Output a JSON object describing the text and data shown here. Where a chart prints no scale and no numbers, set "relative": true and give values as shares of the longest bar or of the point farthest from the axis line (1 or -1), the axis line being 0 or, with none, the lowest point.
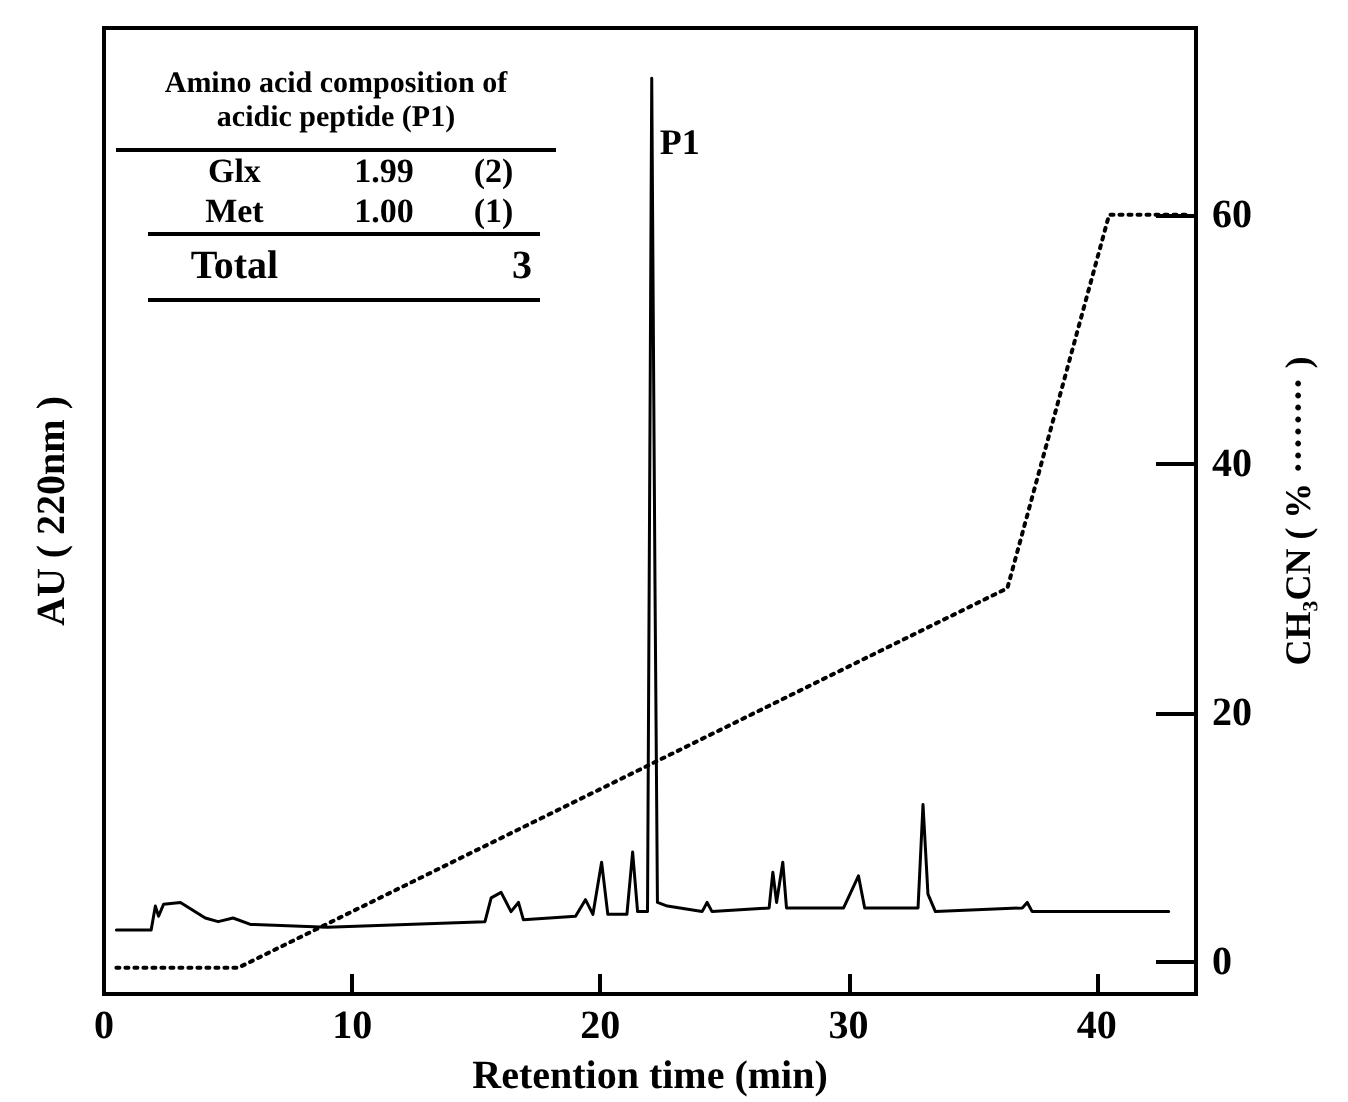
{
  "chart_data": [
    {
      "type": "line",
      "relative": true,
      "xlabel": "Retention time (min)",
      "ylabel": "AU ( 220nm )",
      "xlim": [
        0,
        44
      ],
      "xticks": [
        0,
        10,
        20,
        30,
        40
      ],
      "grid": false,
      "marker": "none",
      "series": [
        {
          "color": "#000000",
          "line_style": "solid",
          "x": [
            0.5,
            1.9,
            2.07,
            2.2,
            2.4,
            3.08,
            4.08,
            4.6,
            5.2,
            5.9,
            9.0,
            15.35,
            15.6,
            16.0,
            16.4,
            16.7,
            16.9,
            19.0,
            19.4,
            19.7,
            20.05,
            20.3,
            21.07,
            21.3,
            21.5,
            21.9,
            22.07,
            22.2,
            22.3,
            22.7,
            24.1,
            24.3,
            24.5,
            26.8,
            26.95,
            27.1,
            27.35,
            27.5,
            29.8,
            30.4,
            30.65,
            32.8,
            33.0,
            33.2,
            33.5,
            37.0,
            37.2,
            37.4,
            42.9
          ],
          "values": [
            0.07,
            0.07,
            0.096,
            0.085,
            0.098,
            0.1,
            0.083,
            0.079,
            0.083,
            0.076,
            0.073,
            0.079,
            0.105,
            0.111,
            0.09,
            0.1,
            0.081,
            0.085,
            0.103,
            0.087,
            0.144,
            0.087,
            0.087,
            0.155,
            0.09,
            0.09,
            1.0,
            0.45,
            0.1,
            0.096,
            0.09,
            0.1,
            0.09,
            0.094,
            0.133,
            0.1,
            0.144,
            0.094,
            0.094,
            0.129,
            0.094,
            0.094,
            0.207,
            0.109,
            0.09,
            0.094,
            0.1,
            0.09,
            0.09
          ]
        }
      ],
      "annotations": [
        {
          "text": "P1",
          "x": 22.07,
          "y": 0.93
        },
        "Amino acid composition of acidic peptide (P1)",
        "Glx 1.99 (2)",
        "Met 1.00 (1)",
        "Total 3"
      ]
    },
    {
      "type": "line",
      "ylabel": "CH₃CN ( % ········ )",
      "xlim": [
        0,
        44
      ],
      "ylim": [
        -2.6,
        75
      ],
      "yticks": [
        0,
        20,
        40,
        60
      ],
      "tick_labels": "y",
      "grid": false,
      "marker": "none",
      "series": [
        {
          "color": "#000000",
          "line_style": "dotted",
          "x": [
            0.5,
            5.4,
            36.4,
            40.5,
            43.8
          ],
          "values": [
            -0.5,
            -0.5,
            30,
            60,
            60
          ]
        }
      ]
    }
  ]
}
